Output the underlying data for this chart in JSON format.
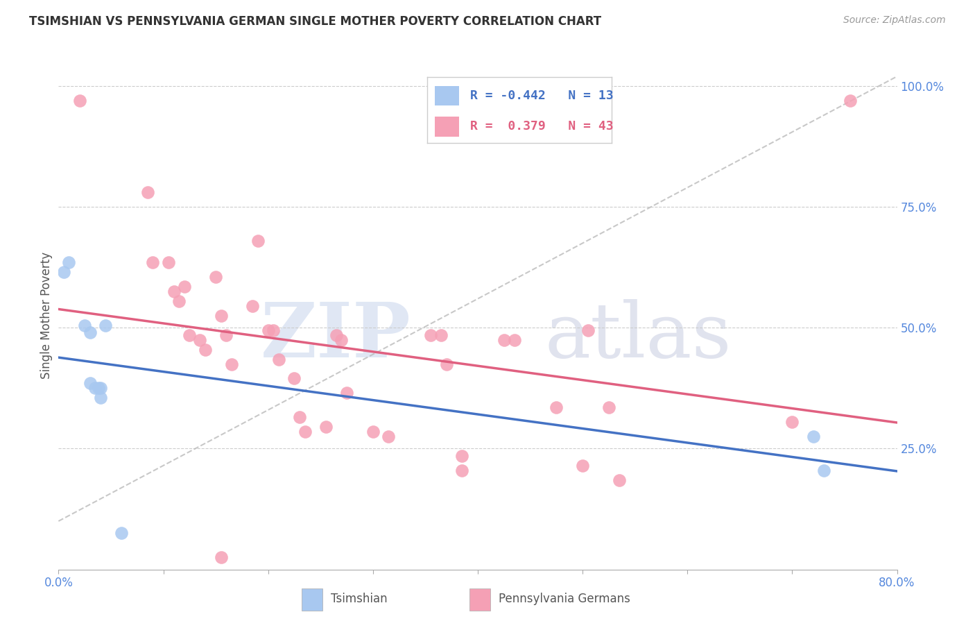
{
  "title": "TSIMSHIAN VS PENNSYLVANIA GERMAN SINGLE MOTHER POVERTY CORRELATION CHART",
  "source": "Source: ZipAtlas.com",
  "ylabel": "Single Mother Poverty",
  "xlim": [
    0.0,
    0.8
  ],
  "ylim": [
    0.0,
    1.05
  ],
  "tsimshian_color": "#a8c8f0",
  "penn_german_color": "#f5a0b5",
  "tsimshian_line_color": "#4472c4",
  "penn_german_line_color": "#e06080",
  "reference_line_color": "#bbbbbb",
  "background_color": "#ffffff",
  "grid_color": "#cccccc",
  "legend_R_blue": "-0.442",
  "legend_N_blue": "13",
  "legend_R_pink": "0.379",
  "legend_N_pink": "43",
  "watermark_zip": "ZIP",
  "watermark_atlas": "atlas",
  "tsimshian_x": [
    0.005,
    0.01,
    0.025,
    0.03,
    0.03,
    0.035,
    0.038,
    0.04,
    0.04,
    0.045,
    0.72,
    0.73,
    0.06
  ],
  "tsimshian_y": [
    0.615,
    0.635,
    0.505,
    0.49,
    0.385,
    0.375,
    0.375,
    0.375,
    0.355,
    0.505,
    0.275,
    0.205,
    0.075
  ],
  "penn_german_x": [
    0.02,
    0.085,
    0.09,
    0.105,
    0.11,
    0.115,
    0.12,
    0.125,
    0.135,
    0.14,
    0.15,
    0.155,
    0.16,
    0.165,
    0.185,
    0.19,
    0.2,
    0.205,
    0.21,
    0.225,
    0.23,
    0.235,
    0.255,
    0.265,
    0.27,
    0.275,
    0.3,
    0.315,
    0.355,
    0.365,
    0.37,
    0.385,
    0.385,
    0.425,
    0.435,
    0.475,
    0.5,
    0.505,
    0.525,
    0.535,
    0.7,
    0.755,
    0.155
  ],
  "penn_german_y": [
    0.97,
    0.78,
    0.635,
    0.635,
    0.575,
    0.555,
    0.585,
    0.485,
    0.475,
    0.455,
    0.605,
    0.525,
    0.485,
    0.425,
    0.545,
    0.68,
    0.495,
    0.495,
    0.435,
    0.395,
    0.315,
    0.285,
    0.295,
    0.485,
    0.475,
    0.365,
    0.285,
    0.275,
    0.485,
    0.485,
    0.425,
    0.235,
    0.205,
    0.475,
    0.475,
    0.335,
    0.215,
    0.495,
    0.335,
    0.185,
    0.305,
    0.97,
    0.025
  ]
}
